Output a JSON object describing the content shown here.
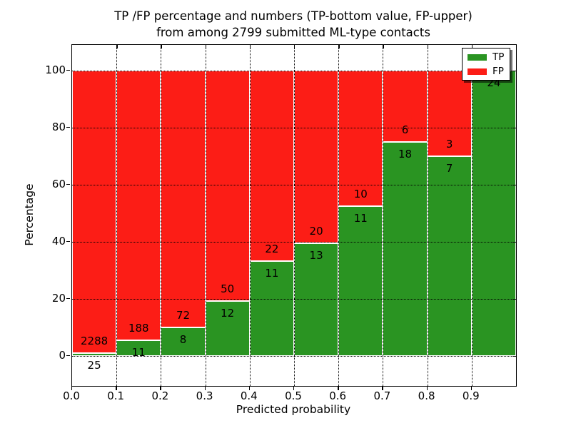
{
  "chart_data": {
    "type": "bar",
    "stacked": true,
    "orientation": "vertical",
    "title_lines": [
      "TP /FP percentage and numbers (TP-bottom value, FP-upper)",
      "from among 2799 submitted ML-type contacts"
    ],
    "total_contacts": 2799,
    "x_bin_edges": [
      0.0,
      0.1,
      0.2,
      0.3,
      0.4,
      0.5,
      0.6,
      0.7,
      0.8,
      0.9,
      1.0
    ],
    "series": [
      {
        "name": "TP",
        "color": "#2a9422",
        "counts": [
          25,
          11,
          8,
          12,
          11,
          13,
          11,
          18,
          7,
          24
        ]
      },
      {
        "name": "FP",
        "color": "#fc1d16",
        "counts": [
          2288,
          188,
          72,
          50,
          22,
          20,
          10,
          6,
          3,
          0
        ]
      }
    ],
    "tp_percent_of_bin": [
      1.08,
      5.53,
      10.0,
      19.35,
      33.33,
      39.39,
      52.38,
      75.0,
      70.0,
      100.0
    ],
    "xlabel": "Predicted probability",
    "ylabel": "Percentage",
    "xtick_labels": [
      "0.0",
      "0.1",
      "0.2",
      "0.3",
      "0.4",
      "0.5",
      "0.6",
      "0.7",
      "0.8",
      "0.9"
    ],
    "ytick_values": [
      0,
      20,
      40,
      60,
      80,
      100
    ],
    "xlim": [
      0,
      1
    ],
    "ylim": [
      -10.5,
      109
    ],
    "grid": {
      "style": "dotted",
      "color": "#000000"
    },
    "legend": {
      "position": "upper-right",
      "entries": [
        {
          "label": "TP",
          "color": "#2a9422"
        },
        {
          "label": "FP",
          "color": "#fc1d16"
        }
      ]
    }
  }
}
